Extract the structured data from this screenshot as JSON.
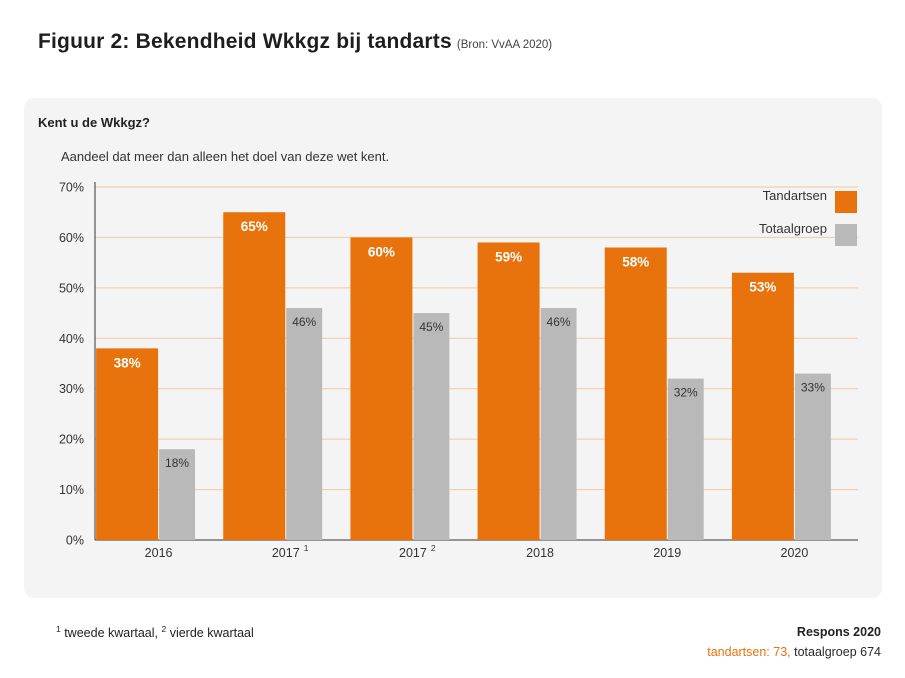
{
  "figure": {
    "title": "Figuur 2: Bekendheid Wkkgz bij tandarts",
    "source": "(Bron: VvAA 2020)"
  },
  "chart_data": {
    "type": "bar",
    "title": "Kent u de Wkkgz?",
    "subtitle": "Aandeel dat meer dan alleen het doel van deze wet kent.",
    "categories": [
      "2016",
      "2017",
      "2017",
      "2018",
      "2019",
      "2020"
    ],
    "category_superscripts": [
      "",
      "1",
      "2",
      "",
      "",
      ""
    ],
    "series": [
      {
        "name": "Tandartsen",
        "color": "#e8720c",
        "values": [
          38,
          65,
          60,
          59,
          58,
          53
        ],
        "labels": [
          "38%",
          "65%",
          "60%",
          "59%",
          "58%",
          "53%"
        ]
      },
      {
        "name": "Totaalgroep",
        "color": "#b9b9b9",
        "values": [
          18,
          46,
          45,
          46,
          32,
          33
        ],
        "labels": [
          "18%",
          "46%",
          "45%",
          "46%",
          "32%",
          "33%"
        ]
      }
    ],
    "y_ticks": [
      "0%",
      "10%",
      "20%",
      "30%",
      "40%",
      "50%",
      "60%",
      "70%"
    ],
    "ylim": [
      0,
      70
    ],
    "grid": true,
    "legend_position": "top-right",
    "colors": {
      "gridline": "#f0c9a4",
      "axis": "#333333"
    }
  },
  "footnote": {
    "sup1": "1",
    "text1": " tweede kwartaal, ",
    "sup2": "2",
    "text2": " vierde kwartaal"
  },
  "response": {
    "heading": "Respons 2020",
    "dentists": "tandartsen: 73,",
    "total": " totaalgroep 674"
  }
}
